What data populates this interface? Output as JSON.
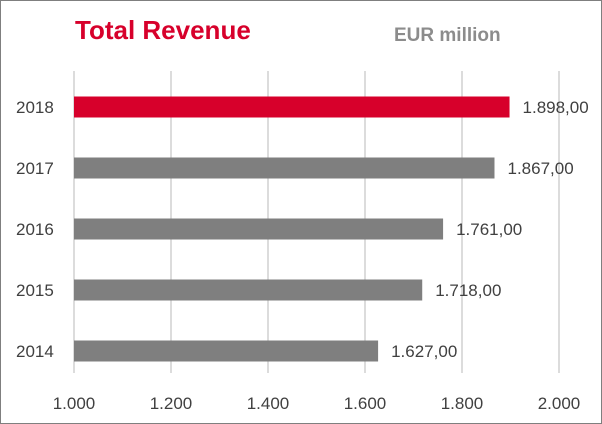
{
  "header": {
    "title": "Total Revenue",
    "unit": "EUR million"
  },
  "chart_data": {
    "type": "bar",
    "orientation": "horizontal",
    "title": "Total Revenue",
    "unit_label": "EUR million",
    "categories": [
      "2018",
      "2017",
      "2016",
      "2015",
      "2014"
    ],
    "values": [
      1898.0,
      1867.0,
      1761.0,
      1718.0,
      1627.0
    ],
    "value_labels": [
      "1.898,00",
      "1.867,00",
      "1.761,00",
      "1.718,00",
      "1.627,00"
    ],
    "xlim": [
      1000,
      2000
    ],
    "x_ticks": [
      1000,
      1200,
      1400,
      1600,
      1800,
      2000
    ],
    "x_tick_labels": [
      "1.000",
      "1.200",
      "1.400",
      "1.600",
      "1.800",
      "2.000"
    ],
    "grid": true,
    "legend": "none",
    "colors": {
      "highlight": "#d7002b",
      "bar": "#7f7f7f",
      "grid": "#d0d0d0",
      "text": "#404040"
    },
    "highlight_index": 0
  }
}
